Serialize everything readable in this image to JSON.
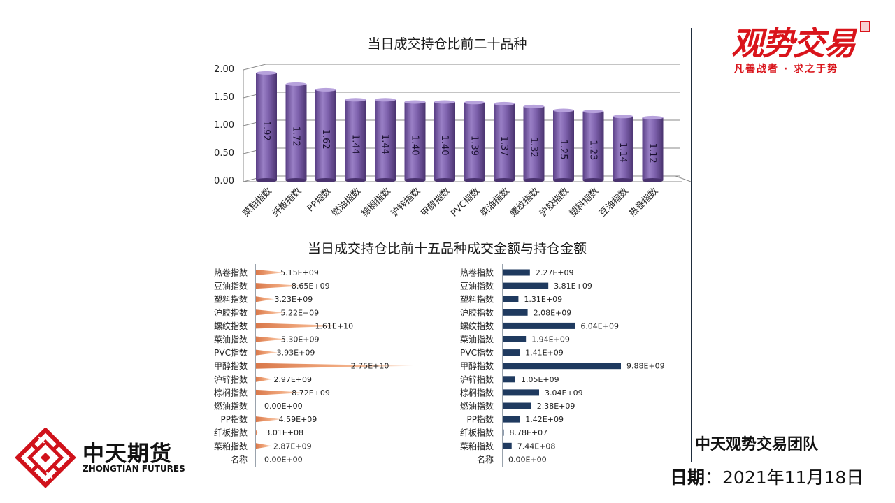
{
  "chart_data": [
    {
      "type": "bar",
      "title": "当日成交持仓比前二十品种",
      "categories": [
        "菜粕指数",
        "纤板指数",
        "PP指数",
        "燃油指数",
        "棕榈指数",
        "沪锌指数",
        "甲醇指数",
        "PVC指数",
        "菜油指数",
        "螺纹指数",
        "沪胶指数",
        "塑料指数",
        "豆油指数",
        "热卷指数"
      ],
      "values": [
        1.92,
        1.72,
        1.62,
        1.44,
        1.44,
        1.4,
        1.4,
        1.39,
        1.37,
        1.32,
        1.25,
        1.23,
        1.14,
        1.12
      ],
      "labels": [
        "1.92",
        "1.72",
        "1.62",
        "1.44",
        "1.44",
        "1.40",
        "1.40",
        "1.39",
        "1.37",
        "1.32",
        "1.25",
        "1.23",
        "1.14",
        "1.12"
      ],
      "yticks": [
        "0.00",
        "0.50",
        "1.00",
        "1.50",
        "2.00"
      ],
      "ylim": [
        0,
        2
      ],
      "xlabel": "",
      "ylabel": "",
      "grid": true,
      "color": "#7b5ea7"
    },
    {
      "type": "bar",
      "orientation": "horizontal",
      "title": "当日成交持仓比前十五品种成交金额与持仓金额",
      "categories": [
        "热卷指数",
        "豆油指数",
        "塑料指数",
        "沪胶指数",
        "螺纹指数",
        "菜油指数",
        "PVC指数",
        "甲醇指数",
        "沪锌指数",
        "棕榈指数",
        "燃油指数",
        "PP指数",
        "纤板指数",
        "菜粕指数",
        "名称"
      ],
      "series": [
        {
          "name": "成交金额",
          "values": [
            5150000000.0,
            8650000000.0,
            3230000000.0,
            5220000000.0,
            16100000000.0,
            5300000000.0,
            3930000000.0,
            27500000000.0,
            2970000000.0,
            8720000000.0,
            0,
            4590000000.0,
            301000000.0,
            2870000000.0,
            0
          ],
          "labels": [
            "5.15E+09",
            "8.65E+09",
            "3.23E+09",
            "5.22E+09",
            "1.61E+10",
            "5.30E+09",
            "3.93E+09",
            "2.75E+10",
            "2.97E+09",
            "8.72E+09",
            "0.00E+00",
            "4.59E+09",
            "3.01E+08",
            "2.87E+09",
            "0.00E+00"
          ],
          "color": "#e8956a"
        },
        {
          "name": "持仓金额",
          "values": [
            2270000000.0,
            3810000000.0,
            1310000000.0,
            2080000000.0,
            6040000000.0,
            1940000000.0,
            1410000000.0,
            9880000000.0,
            1050000000.0,
            3040000000.0,
            2380000000.0,
            1420000000.0,
            87800000.0,
            744000000.0,
            0
          ],
          "labels": [
            "2.27E+09",
            "3.81E+09",
            "1.31E+09",
            "2.08E+09",
            "6.04E+09",
            "1.94E+09",
            "1.41E+09",
            "9.88E+09",
            "1.05E+09",
            "3.04E+09",
            "2.38E+09",
            "1.42E+09",
            "8.78E+07",
            "7.44E+08",
            "0.00E+00"
          ],
          "color": "#1f3a5f"
        }
      ]
    }
  ],
  "brand": {
    "logo_right_main": "观势交易",
    "logo_right_sub": "凡善战者 · 求之于势",
    "logo_left_cn": "中天期货",
    "logo_left_en": "ZHONGTIAN FUTURES"
  },
  "footer": {
    "team": "中天观势交易团队",
    "date_label": "日期",
    "date_sep": "：",
    "date_value": "2021年11月18日"
  }
}
